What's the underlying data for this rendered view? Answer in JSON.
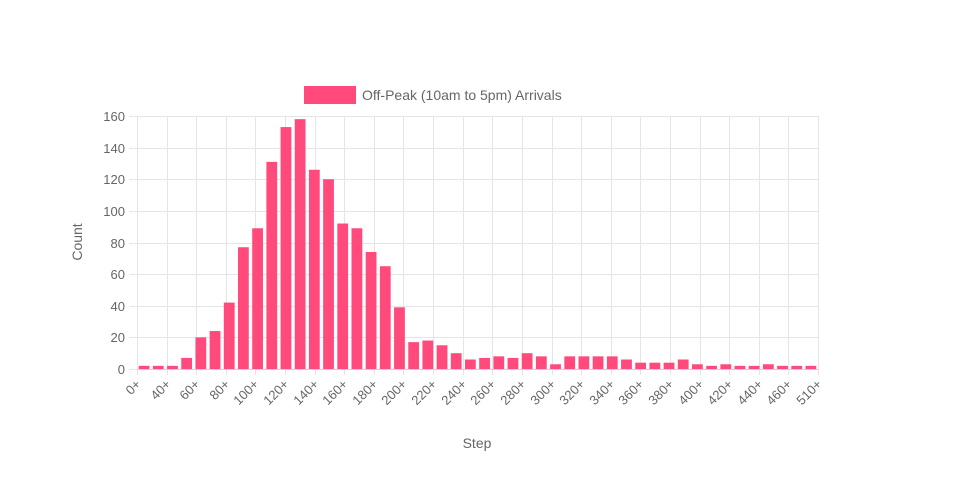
{
  "chart_data": {
    "type": "bar",
    "xlabel": "Step",
    "ylabel": "Count",
    "ylim": [
      0,
      160
    ],
    "yticks": [
      0,
      20,
      40,
      60,
      80,
      100,
      120,
      140,
      160
    ],
    "grid": true,
    "legend_position": "top",
    "x_tick_labels": [
      "0+",
      "40+",
      "60+",
      "80+",
      "100+",
      "120+",
      "140+",
      "160+",
      "180+",
      "200+",
      "220+",
      "240+",
      "260+",
      "280+",
      "300+",
      "320+",
      "340+",
      "360+",
      "380+",
      "400+",
      "420+",
      "440+",
      "460+",
      "510+"
    ],
    "series": [
      {
        "name": "Off-Peak (10am to 5pm) Arrivals",
        "color": "#ff4a7b",
        "values": [
          2,
          2,
          2,
          7,
          20,
          24,
          42,
          77,
          89,
          131,
          153,
          158,
          126,
          120,
          92,
          89,
          74,
          65,
          39,
          17,
          18,
          15,
          10,
          6,
          7,
          8,
          7,
          10,
          8,
          3,
          8,
          8,
          8,
          8,
          6,
          4,
          4,
          4,
          6,
          3,
          2,
          3,
          2,
          2,
          3,
          2,
          2,
          2
        ]
      }
    ]
  }
}
